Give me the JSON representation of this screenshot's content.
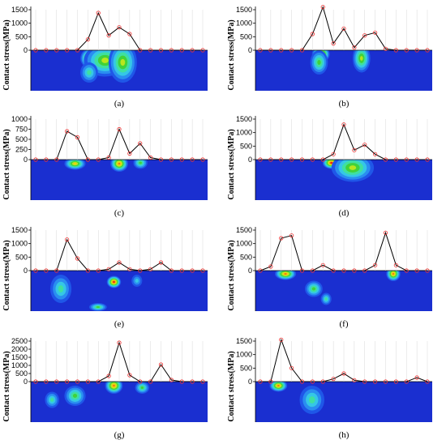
{
  "figure": {
    "colors": {
      "field_base": "#1a2fd0",
      "contour_levels": [
        "#1f57e8",
        "#2a8ef0",
        "#35c7e6",
        "#3fe0a0",
        "#40d23a",
        "#b8e61e",
        "#f0d010",
        "#f07a10",
        "#e81810"
      ],
      "line": "#000000",
      "marker": "#ee3333",
      "guide": "#d8d8d8"
    },
    "ylabel": "Contact stress(MPa)"
  },
  "chart_data": [
    {
      "type": "line",
      "panel_label": "(a)",
      "ylabel": "Contact stress(MPa)",
      "ylim": [
        0,
        1500
      ],
      "yticks": [
        0,
        500,
        1000,
        1500
      ],
      "x": [
        1,
        2,
        3,
        4,
        5,
        6,
        7,
        8,
        9,
        10,
        11,
        12,
        13,
        14,
        15,
        16,
        17
      ],
      "values": [
        0,
        0,
        0,
        0,
        0,
        400,
        1380,
        550,
        850,
        600,
        0,
        0,
        0,
        0,
        0,
        0,
        0
      ],
      "hotspots": [
        {
          "cx": 0.34,
          "cy": 0.2,
          "rx": 0.06,
          "ry": 0.25,
          "level": 8
        },
        {
          "cx": 0.42,
          "cy": 0.25,
          "rx": 0.12,
          "ry": 0.4,
          "level": 5
        },
        {
          "cx": 0.52,
          "cy": 0.3,
          "rx": 0.08,
          "ry": 0.5,
          "level": 5
        },
        {
          "cx": 0.33,
          "cy": 0.55,
          "rx": 0.05,
          "ry": 0.25,
          "level": 3
        }
      ]
    },
    {
      "type": "line",
      "panel_label": "(b)",
      "ylabel": "Contact stress(MPa)",
      "ylim": [
        0,
        1500
      ],
      "yticks": [
        0,
        500,
        1000,
        1500
      ],
      "x": [
        1,
        2,
        3,
        4,
        5,
        6,
        7,
        8,
        9,
        10,
        11,
        12,
        13,
        14,
        15,
        16,
        17
      ],
      "values": [
        0,
        0,
        0,
        0,
        0,
        600,
        1600,
        250,
        800,
        100,
        550,
        650,
        50,
        0,
        0,
        0,
        0
      ],
      "hotspots": [
        {
          "cx": 0.37,
          "cy": 0.1,
          "rx": 0.05,
          "ry": 0.2,
          "level": 8
        },
        {
          "cx": 0.36,
          "cy": 0.3,
          "rx": 0.05,
          "ry": 0.3,
          "level": 4
        },
        {
          "cx": 0.6,
          "cy": 0.2,
          "rx": 0.05,
          "ry": 0.35,
          "level": 5
        }
      ]
    },
    {
      "type": "line",
      "panel_label": "(c)",
      "ylabel": "Contact stress(MPa)",
      "ylim": [
        0,
        1000
      ],
      "yticks": [
        0,
        250,
        500,
        750,
        1000
      ],
      "x": [
        1,
        2,
        3,
        4,
        5,
        6,
        7,
        8,
        9,
        10,
        11,
        12,
        13,
        14,
        15,
        16,
        17
      ],
      "values": [
        0,
        0,
        0,
        700,
        550,
        0,
        0,
        50,
        750,
        150,
        400,
        50,
        0,
        0,
        0,
        0,
        0
      ],
      "hotspots": [
        {
          "cx": 0.25,
          "cy": 0.1,
          "rx": 0.06,
          "ry": 0.15,
          "level": 6
        },
        {
          "cx": 0.5,
          "cy": 0.1,
          "rx": 0.05,
          "ry": 0.2,
          "level": 7
        },
        {
          "cx": 0.62,
          "cy": 0.08,
          "rx": 0.04,
          "ry": 0.15,
          "level": 4
        }
      ]
    },
    {
      "type": "line",
      "panel_label": "(d)",
      "ylabel": "Contact stress(MPa)",
      "ylim": [
        0,
        1500
      ],
      "yticks": [
        0,
        500,
        1000,
        1500
      ],
      "x": [
        1,
        2,
        3,
        4,
        5,
        6,
        7,
        8,
        9,
        10,
        11,
        12,
        13,
        14,
        15,
        16,
        17
      ],
      "values": [
        0,
        0,
        0,
        0,
        0,
        0,
        0,
        200,
        1300,
        350,
        550,
        200,
        0,
        0,
        0,
        0,
        0
      ],
      "hotspots": [
        {
          "cx": 0.43,
          "cy": 0.08,
          "rx": 0.05,
          "ry": 0.15,
          "level": 8
        },
        {
          "cx": 0.55,
          "cy": 0.2,
          "rx": 0.12,
          "ry": 0.35,
          "level": 5
        }
      ]
    },
    {
      "type": "line",
      "panel_label": "(e)",
      "ylabel": "Contact stress(MPa)",
      "ylim": [
        0,
        1500
      ],
      "yticks": [
        0,
        500,
        1000,
        1500
      ],
      "x": [
        1,
        2,
        3,
        4,
        5,
        6,
        7,
        8,
        9,
        10,
        11,
        12,
        13,
        14,
        15,
        16,
        17
      ],
      "values": [
        0,
        0,
        0,
        1150,
        450,
        0,
        0,
        50,
        300,
        50,
        0,
        50,
        300,
        0,
        0,
        0,
        0
      ],
      "hotspots": [
        {
          "cx": 0.47,
          "cy": 0.28,
          "rx": 0.04,
          "ry": 0.15,
          "level": 8
        },
        {
          "cx": 0.17,
          "cy": 0.45,
          "rx": 0.06,
          "ry": 0.35,
          "level": 3
        },
        {
          "cx": 0.38,
          "cy": 0.9,
          "rx": 0.05,
          "ry": 0.1,
          "level": 4
        },
        {
          "cx": 0.6,
          "cy": 0.25,
          "rx": 0.03,
          "ry": 0.15,
          "level": 2
        }
      ]
    },
    {
      "type": "line",
      "panel_label": "(f)",
      "ylabel": "Contact stress(MPa)",
      "ylim": [
        0,
        1500
      ],
      "yticks": [
        0,
        500,
        1000,
        1500
      ],
      "x": [
        1,
        2,
        3,
        4,
        5,
        6,
        7,
        8,
        9,
        10,
        11,
        12,
        13,
        14,
        15,
        16,
        17
      ],
      "values": [
        0,
        150,
        1200,
        1300,
        0,
        0,
        200,
        0,
        0,
        0,
        0,
        200,
        1400,
        200,
        0,
        0,
        0
      ],
      "hotspots": [
        {
          "cx": 0.17,
          "cy": 0.08,
          "rx": 0.06,
          "ry": 0.15,
          "level": 7
        },
        {
          "cx": 0.78,
          "cy": 0.08,
          "rx": 0.04,
          "ry": 0.18,
          "level": 7
        },
        {
          "cx": 0.33,
          "cy": 0.45,
          "rx": 0.05,
          "ry": 0.2,
          "level": 4
        },
        {
          "cx": 0.4,
          "cy": 0.7,
          "rx": 0.03,
          "ry": 0.15,
          "level": 3
        }
      ]
    },
    {
      "type": "line",
      "panel_label": "(g)",
      "ylabel": "Contact stress(MPa)",
      "ylim": [
        0,
        2500
      ],
      "yticks": [
        0,
        500,
        1000,
        1500,
        2000,
        2500
      ],
      "x": [
        1,
        2,
        3,
        4,
        5,
        6,
        7,
        8,
        9,
        10,
        11,
        12,
        13,
        14,
        15,
        16,
        17
      ],
      "values": [
        0,
        0,
        0,
        0,
        0,
        0,
        0,
        350,
        2400,
        400,
        0,
        0,
        1050,
        100,
        0,
        0,
        0
      ],
      "hotspots": [
        {
          "cx": 0.47,
          "cy": 0.1,
          "rx": 0.05,
          "ry": 0.2,
          "level": 7
        },
        {
          "cx": 0.25,
          "cy": 0.35,
          "rx": 0.06,
          "ry": 0.25,
          "level": 4
        },
        {
          "cx": 0.63,
          "cy": 0.15,
          "rx": 0.04,
          "ry": 0.15,
          "level": 4
        },
        {
          "cx": 0.12,
          "cy": 0.45,
          "rx": 0.04,
          "ry": 0.2,
          "level": 3
        }
      ]
    },
    {
      "type": "line",
      "panel_label": "(h)",
      "ylabel": "Contact stress(MPa)",
      "ylim": [
        0,
        1500
      ],
      "yticks": [
        0,
        500,
        1000,
        1500
      ],
      "x": [
        1,
        2,
        3,
        4,
        5,
        6,
        7,
        8,
        9,
        10,
        11,
        12,
        13,
        14,
        15,
        16,
        17
      ],
      "values": [
        0,
        0,
        1550,
        500,
        0,
        0,
        0,
        100,
        300,
        50,
        0,
        0,
        0,
        0,
        0,
        150,
        0
      ],
      "hotspots": [
        {
          "cx": 0.13,
          "cy": 0.1,
          "rx": 0.05,
          "ry": 0.15,
          "level": 7
        },
        {
          "cx": 0.32,
          "cy": 0.45,
          "rx": 0.07,
          "ry": 0.35,
          "level": 3
        }
      ]
    }
  ]
}
